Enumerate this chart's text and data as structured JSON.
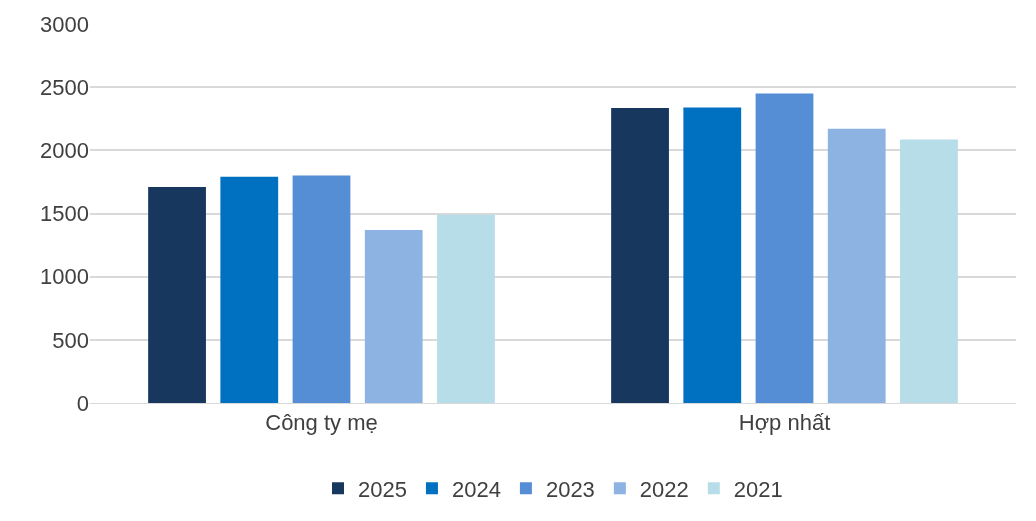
{
  "chart_data": {
    "type": "bar",
    "categories": [
      "Công ty mẹ",
      "Hợp nhất"
    ],
    "series": [
      {
        "name": "2025",
        "color": "#17375e",
        "values": [
          1710,
          2335
        ]
      },
      {
        "name": "2024",
        "color": "#0070c0",
        "values": [
          1790,
          2340
        ]
      },
      {
        "name": "2023",
        "color": "#558ed5",
        "values": [
          1800,
          2450
        ]
      },
      {
        "name": "2022",
        "color": "#8db3e2",
        "values": [
          1370,
          2170
        ]
      },
      {
        "name": "2021",
        "color": "#b7dde8",
        "values": [
          1490,
          2085
        ]
      }
    ],
    "ylim": [
      0,
      3000
    ],
    "yticks": [
      0,
      500,
      1000,
      1500,
      2000,
      2500,
      3000
    ],
    "grid": "y",
    "legend": "bottom"
  }
}
